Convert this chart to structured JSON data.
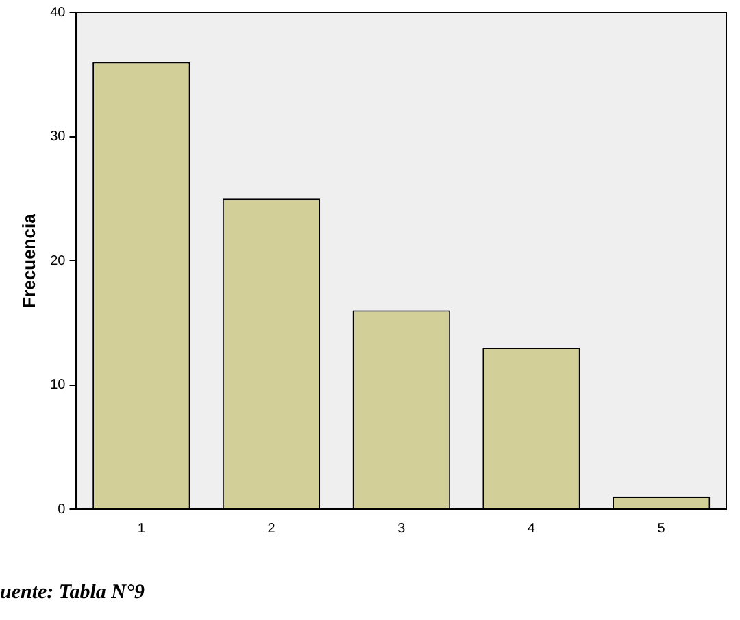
{
  "chart_data": {
    "type": "bar",
    "ylabel": "Frecuencia",
    "categories": [
      "1",
      "2",
      "3",
      "4",
      "5"
    ],
    "values": [
      36,
      25,
      16,
      13,
      1
    ],
    "color": "#d3cf99",
    "ylim": [
      0,
      40
    ],
    "yticks": [
      0,
      10,
      20,
      30,
      40
    ],
    "grid": false,
    "legend": false,
    "annotations": [
      "uente: Tabla N°9"
    ]
  }
}
